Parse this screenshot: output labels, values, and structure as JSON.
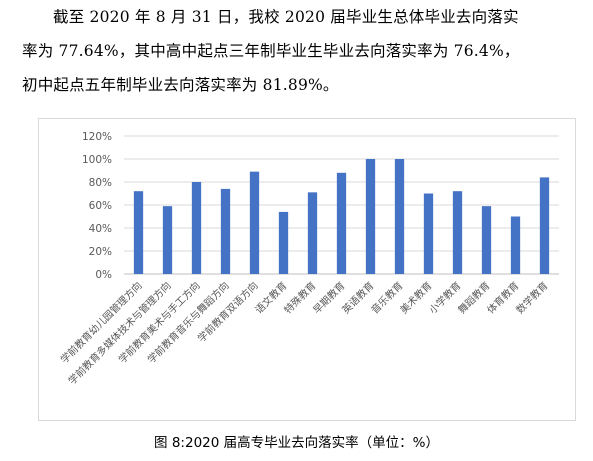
{
  "paragraph": {
    "line1": "截至 2020 年 8 月 31 日，我校 2020 届毕业生总体毕业去向落实",
    "line2": "率为 77.64%，其中高中起点三年制毕业生毕业去向落实率为 76.4%，",
    "line3": "初中起点五年制毕业去向落实率为 81.89%。"
  },
  "caption": "图 8:2020 届高专毕业去向落实率（单位：%）",
  "chart_data": {
    "type": "bar",
    "title": "",
    "xlabel": "",
    "ylabel": "",
    "ylim": [
      0,
      120
    ],
    "yticks": [
      "0%",
      "20%",
      "40%",
      "60%",
      "80%",
      "100%",
      "120%"
    ],
    "grid": true,
    "legend": "none",
    "bar_color": "#4472C4",
    "categories": [
      "学前教育幼儿园管理方向",
      "学前教育多媒体技术与管理方向",
      "学前教育美术与手工方向",
      "学前教育音乐与舞蹈方向",
      "学前教育双语方向",
      "语文教育",
      "特殊教育",
      "早期教育",
      "英语教育",
      "音乐教育",
      "美术教育",
      "小学教育",
      "舞蹈教育",
      "体育教育",
      "数学教育"
    ],
    "values": [
      72,
      59,
      80,
      74,
      89,
      54,
      71,
      88,
      100,
      100,
      70,
      72,
      59,
      50,
      84
    ]
  }
}
